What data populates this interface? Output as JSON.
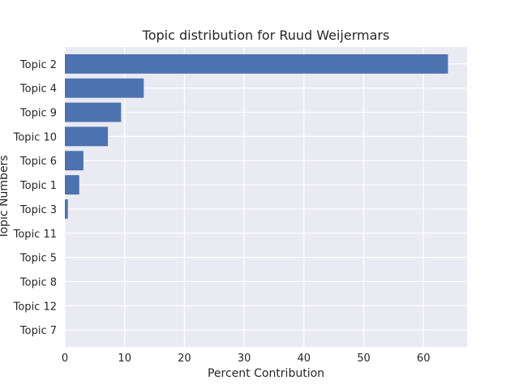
{
  "chart_data": {
    "type": "bar",
    "orientation": "horizontal",
    "title": "Topic distribution for Ruud Weijermars",
    "xlabel": "Percent Contribution",
    "ylabel": "Topic Numbers",
    "categories": [
      "Topic 2",
      "Topic 4",
      "Topic 9",
      "Topic 10",
      "Topic 6",
      "Topic 1",
      "Topic 3",
      "Topic 11",
      "Topic 5",
      "Topic 8",
      "Topic 12",
      "Topic 7"
    ],
    "values": [
      64.1,
      13.2,
      9.4,
      7.2,
      3.1,
      2.4,
      0.5,
      0.0,
      0.0,
      0.0,
      0.0,
      0.0
    ],
    "xlim": [
      0,
      67.3
    ],
    "xticks": [
      0,
      10,
      20,
      30,
      40,
      50,
      60
    ],
    "grid": true,
    "colors": {
      "bar": "#4c72b0",
      "plot_bg": "#eaeaf2",
      "grid": "#ffffff"
    }
  }
}
